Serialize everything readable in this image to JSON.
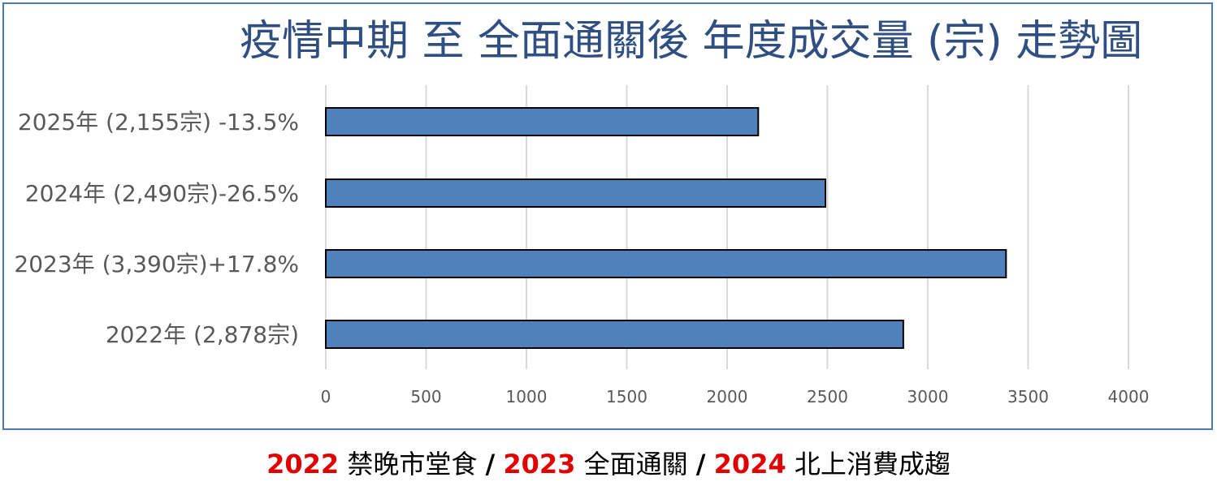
{
  "chart_data": {
    "type": "bar",
    "orientation": "horizontal",
    "title": "疫情中期 至 全面通關後 年度成交量 (宗) 走勢圖",
    "categories": [
      "2025年 (2,155宗) -13.5%",
      "2024年 (2,490宗)-26.5%",
      "2023年 (3,390宗)+17.8%",
      "2022年 (2,878宗)"
    ],
    "values": [
      2155,
      2490,
      3390,
      2878
    ],
    "xlim": [
      0,
      4000
    ],
    "xticks": [
      "0",
      "500",
      "1000",
      "1500",
      "2000",
      "2500",
      "3000",
      "3500",
      "4000"
    ],
    "grid": true,
    "legend": "none",
    "colors": {
      "bar": "#4f81bd",
      "bar_edge": "#000000",
      "grid": "#d9d9d9",
      "title": "#2f4f82",
      "frame": "#4a78b0"
    }
  },
  "caption": {
    "items": [
      {
        "year": "2022",
        "text": " 禁晚市堂食 "
      },
      {
        "year": "2023",
        "text": " 全面通關 "
      },
      {
        "year": "2024",
        "text": " 北上消費成趨"
      }
    ],
    "separator": "/",
    "year_color": "#e00000"
  }
}
